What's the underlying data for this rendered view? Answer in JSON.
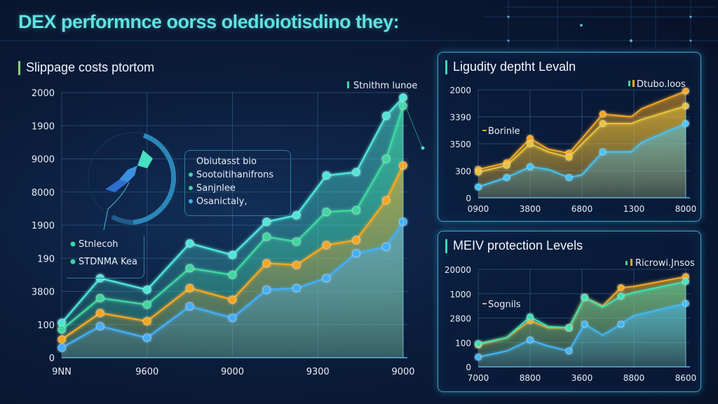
{
  "page": {
    "title": "DEX performnce oorss oledioiotisdino they:"
  },
  "colors": {
    "teal": "#3fe0c0",
    "cyan": "#4fd6ff",
    "orange": "#f5a623",
    "blue": "#3a9bf0",
    "panel_border": "#3ba6c9",
    "title": "#5fe3e0"
  },
  "icons": {
    "main_badge": "rocket-icon"
  },
  "chart_data": [
    {
      "id": "slippage",
      "type": "area",
      "title": "Slippage costs ptortom",
      "legend": [
        "Stnithm lunoe"
      ],
      "legend_position": "top-right",
      "callout_legend": {
        "heading": "Obiutasst bio",
        "items": [
          "Sootoitihanifrons",
          "Sanjnlee",
          "Osanictaly,"
        ]
      },
      "inline_legend": [
        "Stnlecoh",
        "STDNMA Kea"
      ],
      "yticks": [
        "2000",
        "1900",
        "9000",
        "8000",
        "1900",
        "190",
        "3800",
        "100",
        "0"
      ],
      "xticks": [
        "9NN",
        "9600",
        "9000",
        "9300",
        "9000"
      ],
      "ylim": [
        0,
        8
      ],
      "grid": true,
      "x": [
        0,
        0.45,
        1,
        1.5,
        2,
        2.4,
        2.75,
        3.1,
        3.45,
        3.8,
        4
      ],
      "series": [
        {
          "name": "Upper teal",
          "color": "#4fe6d8",
          "values": [
            1.05,
            2.4,
            2.05,
            3.45,
            3.1,
            4.1,
            4.3,
            5.5,
            5.6,
            7.3,
            7.85
          ]
        },
        {
          "name": "Teal",
          "color": "#3fd6a0",
          "values": [
            0.85,
            1.8,
            1.6,
            2.7,
            2.5,
            3.65,
            3.5,
            4.4,
            4.45,
            6.0,
            7.6
          ]
        },
        {
          "name": "Orange",
          "color": "#f5a623",
          "values": [
            0.55,
            1.35,
            1.1,
            2.1,
            1.75,
            2.85,
            2.8,
            3.4,
            3.55,
            4.75,
            5.8
          ]
        },
        {
          "name": "Blue",
          "color": "#45aef5",
          "values": [
            0.3,
            0.95,
            0.6,
            1.55,
            1.2,
            2.05,
            2.1,
            2.4,
            3.15,
            3.35,
            4.1
          ]
        }
      ]
    },
    {
      "id": "liquidity",
      "type": "area",
      "title": "Ligudity deptht Levaln",
      "legend": [
        "Dtubo.loos"
      ],
      "legend_position": "top-right",
      "inline_legend": [
        "Borinle"
      ],
      "yticks": [
        "2000",
        "3390",
        "3500",
        "300",
        "0"
      ],
      "xticks": [
        "0900",
        "3800",
        "6800",
        "1300",
        "8000"
      ],
      "ylim": [
        0,
        4
      ],
      "grid": true,
      "x": [
        0,
        0.55,
        1,
        1.35,
        1.75,
        2.0,
        2.4,
        2.95,
        3.15,
        4
      ],
      "series": [
        {
          "name": "Orange top",
          "color": "#f5a623",
          "values": [
            1.05,
            1.3,
            2.2,
            1.8,
            1.65,
            2.2,
            3.1,
            3.0,
            3.3,
            3.95
          ]
        },
        {
          "name": "Yellow",
          "color": "#e8c43a",
          "values": [
            0.95,
            1.2,
            2.0,
            1.7,
            1.5,
            2.0,
            2.75,
            2.75,
            2.9,
            3.4
          ]
        },
        {
          "name": "Blue",
          "color": "#45c3f5",
          "values": [
            0.4,
            0.75,
            1.15,
            1.05,
            0.75,
            0.85,
            1.7,
            1.7,
            2.05,
            2.75
          ]
        }
      ]
    },
    {
      "id": "mev",
      "type": "area",
      "title": "MEIV protection Levels",
      "legend": [
        "Ricrowi.Jnsos"
      ],
      "legend_position": "top-right",
      "inline_legend": [
        "Sognils"
      ],
      "yticks": [
        "20000",
        "1000",
        "2800",
        "100",
        "0"
      ],
      "xticks": [
        "7000",
        "8800",
        "3600",
        "8800",
        "8600"
      ],
      "ylim": [
        0,
        4
      ],
      "grid": true,
      "x": [
        0,
        0.55,
        1,
        1.35,
        1.75,
        2.05,
        2.4,
        2.75,
        3.0,
        4
      ],
      "series": [
        {
          "name": "Orange",
          "color": "#f5a623",
          "values": [
            0.9,
            1.2,
            1.9,
            1.6,
            1.6,
            2.85,
            2.5,
            3.25,
            3.3,
            3.7
          ]
        },
        {
          "name": "Teal",
          "color": "#3fe0b8",
          "values": [
            0.95,
            1.2,
            2.05,
            1.65,
            1.6,
            2.85,
            2.45,
            2.9,
            3.05,
            3.5
          ]
        },
        {
          "name": "Blue",
          "color": "#45b6f5",
          "values": [
            0.4,
            0.65,
            1.1,
            0.85,
            0.65,
            1.75,
            1.3,
            1.75,
            2.1,
            2.6
          ]
        }
      ]
    }
  ]
}
